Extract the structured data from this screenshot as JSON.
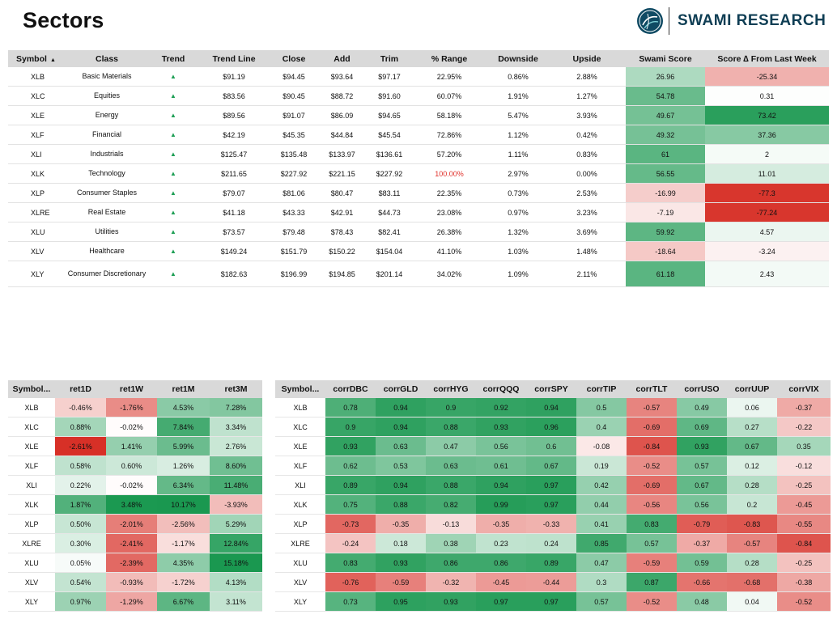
{
  "page": {
    "title": "Sectors"
  },
  "logo": {
    "text": "SWAMI RESEARCH"
  },
  "sectors_table": {
    "headers": [
      "Symbol",
      "Class",
      "Trend",
      "Trend Line",
      "Close",
      "Add",
      "Trim",
      "% Range",
      "Downside",
      "Upside",
      "Swami Score",
      "Score ∆ From Last Week"
    ],
    "sort_indicator": "▲",
    "trend_glyph": "▲",
    "rows": [
      [
        "XLB",
        "Basic Materials",
        "▲",
        "$91.19",
        "$94.45",
        "$93.64",
        "$97.17",
        "22.95%",
        "0.86%",
        "2.88%",
        "26.96",
        "-25.34"
      ],
      [
        "XLC",
        "Equities",
        "▲",
        "$83.56",
        "$90.45",
        "$88.72",
        "$91.60",
        "60.07%",
        "1.91%",
        "1.27%",
        "54.78",
        "0.31"
      ],
      [
        "XLE",
        "Energy",
        "▲",
        "$89.56",
        "$91.07",
        "$86.09",
        "$94.65",
        "58.18%",
        "5.47%",
        "3.93%",
        "49.67",
        "73.42"
      ],
      [
        "XLF",
        "Financial",
        "▲",
        "$42.19",
        "$45.35",
        "$44.84",
        "$45.54",
        "72.86%",
        "1.12%",
        "0.42%",
        "49.32",
        "37.36"
      ],
      [
        "XLI",
        "Industrials",
        "▲",
        "$125.47",
        "$135.48",
        "$133.97",
        "$136.61",
        "57.20%",
        "1.11%",
        "0.83%",
        "61",
        "2"
      ],
      [
        "XLK",
        "Technology",
        "▲",
        "$211.65",
        "$227.92",
        "$221.15",
        "$227.92",
        "100.00%",
        "2.97%",
        "0.00%",
        "56.55",
        "11.01"
      ],
      [
        "XLP",
        "Consumer Staples",
        "▲",
        "$79.07",
        "$81.06",
        "$80.47",
        "$83.11",
        "22.35%",
        "0.73%",
        "2.53%",
        "-16.99",
        "-77.3"
      ],
      [
        "XLRE",
        "Real Estate",
        "▲",
        "$41.18",
        "$43.33",
        "$42.91",
        "$44.73",
        "23.08%",
        "0.97%",
        "3.23%",
        "-7.19",
        "-77.24"
      ],
      [
        "XLU",
        "Utilities",
        "▲",
        "$73.57",
        "$79.48",
        "$78.43",
        "$82.41",
        "26.38%",
        "1.32%",
        "3.69%",
        "59.92",
        "4.57"
      ],
      [
        "XLV",
        "Healthcare",
        "▲",
        "$149.24",
        "$151.79",
        "$150.22",
        "$154.04",
        "41.10%",
        "1.03%",
        "1.48%",
        "-18.64",
        "-3.24"
      ],
      [
        "XLY",
        "Consumer Discretionary",
        "▲",
        "$182.63",
        "$196.99",
        "$194.85",
        "$201.14",
        "34.02%",
        "1.09%",
        "2.11%",
        "61.18",
        "2.43"
      ]
    ]
  },
  "returns_table": {
    "headers": [
      "Symbol...",
      "ret1D",
      "ret1W",
      "ret1M",
      "ret3M"
    ],
    "rows": [
      [
        "XLB",
        "-0.46%",
        "-1.76%",
        "4.53%",
        "7.28%"
      ],
      [
        "XLC",
        "0.88%",
        "-0.02%",
        "7.84%",
        "3.34%"
      ],
      [
        "XLE",
        "-2.61%",
        "1.41%",
        "5.99%",
        "2.76%"
      ],
      [
        "XLF",
        "0.58%",
        "0.60%",
        "1.26%",
        "8.60%"
      ],
      [
        "XLI",
        "0.22%",
        "-0.02%",
        "6.34%",
        "11.48%"
      ],
      [
        "XLK",
        "1.87%",
        "3.48%",
        "10.17%",
        "-3.93%"
      ],
      [
        "XLP",
        "0.50%",
        "-2.01%",
        "-2.56%",
        "5.29%"
      ],
      [
        "XLRE",
        "0.30%",
        "-2.41%",
        "-1.17%",
        "12.84%"
      ],
      [
        "XLU",
        "0.05%",
        "-2.39%",
        "4.35%",
        "15.18%"
      ],
      [
        "XLV",
        "0.54%",
        "-0.93%",
        "-1.72%",
        "4.13%"
      ],
      [
        "XLY",
        "0.97%",
        "-1.29%",
        "6.67%",
        "3.11%"
      ]
    ]
  },
  "corr_table": {
    "headers": [
      "Symbol...",
      "corrDBC",
      "corrGLD",
      "corrHYG",
      "corrQQQ",
      "corrSPY",
      "corrTIP",
      "corrTLT",
      "corrUSO",
      "corrUUP",
      "corrVIX"
    ],
    "rows": [
      [
        "XLB",
        "0.78",
        "0.94",
        "0.9",
        "0.92",
        "0.94",
        "0.5",
        "-0.57",
        "0.49",
        "0.06",
        "-0.37"
      ],
      [
        "XLC",
        "0.9",
        "0.94",
        "0.88",
        "0.93",
        "0.96",
        "0.4",
        "-0.69",
        "0.69",
        "0.27",
        "-0.22"
      ],
      [
        "XLE",
        "0.93",
        "0.63",
        "0.47",
        "0.56",
        "0.6",
        "-0.08",
        "-0.84",
        "0.93",
        "0.67",
        "0.35"
      ],
      [
        "XLF",
        "0.62",
        "0.53",
        "0.63",
        "0.61",
        "0.67",
        "0.19",
        "-0.52",
        "0.57",
        "0.12",
        "-0.12"
      ],
      [
        "XLI",
        "0.89",
        "0.94",
        "0.88",
        "0.94",
        "0.97",
        "0.42",
        "-0.69",
        "0.67",
        "0.28",
        "-0.25"
      ],
      [
        "XLK",
        "0.75",
        "0.88",
        "0.82",
        "0.99",
        "0.97",
        "0.44",
        "-0.56",
        "0.56",
        "0.2",
        "-0.45"
      ],
      [
        "XLP",
        "-0.73",
        "-0.35",
        "-0.13",
        "-0.35",
        "-0.33",
        "0.41",
        "0.83",
        "-0.79",
        "-0.83",
        "-0.55"
      ],
      [
        "XLRE",
        "-0.24",
        "0.18",
        "0.38",
        "0.23",
        "0.24",
        "0.85",
        "0.57",
        "-0.37",
        "-0.57",
        "-0.84"
      ],
      [
        "XLU",
        "0.83",
        "0.93",
        "0.86",
        "0.86",
        "0.89",
        "0.47",
        "-0.59",
        "0.59",
        "0.28",
        "-0.25"
      ],
      [
        "XLV",
        "-0.76",
        "-0.59",
        "-0.32",
        "-0.45",
        "-0.44",
        "0.3",
        "0.87",
        "-0.66",
        "-0.68",
        "-0.38"
      ],
      [
        "XLY",
        "0.73",
        "0.95",
        "0.93",
        "0.97",
        "0.97",
        "0.57",
        "-0.52",
        "0.48",
        "0.04",
        "-0.52"
      ]
    ]
  },
  "colors": {
    "positive": "#1a9850",
    "negative": "#d73027",
    "header_bg": "#d9d9d9",
    "trend_up": "#1e9f55",
    "highlight_text": "#e0302a"
  }
}
